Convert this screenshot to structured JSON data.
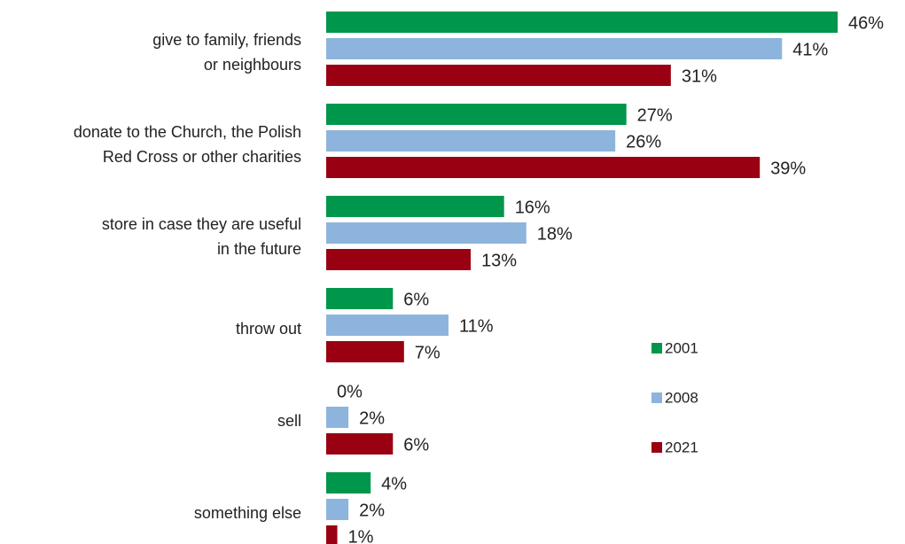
{
  "chart_data": {
    "type": "bar",
    "orientation": "horizontal",
    "categories": [
      "give to family, friends\nor neighbours",
      "donate to the Church, the Polish\nRed Cross or other charities",
      "store in case they are useful\nin the future",
      "throw out",
      "sell",
      "something else"
    ],
    "series": [
      {
        "name": "2001",
        "color": "#00964b",
        "values": [
          46,
          27,
          16,
          6,
          0,
          4
        ],
        "value_labels": [
          "46%",
          "27%",
          "16%",
          "6%",
          "0%",
          "4%"
        ]
      },
      {
        "name": "2008",
        "color": "#8db4dc",
        "values": [
          41,
          26,
          18,
          11,
          2,
          2
        ],
        "value_labels": [
          "41%",
          "26%",
          "18%",
          "11%",
          "2%",
          "2%"
        ]
      },
      {
        "name": "2021",
        "color": "#990012",
        "values": [
          31,
          39,
          13,
          7,
          6,
          1
        ],
        "value_labels": [
          "31%",
          "39%",
          "13%",
          "7%",
          "6%",
          "1%"
        ]
      }
    ]
  }
}
